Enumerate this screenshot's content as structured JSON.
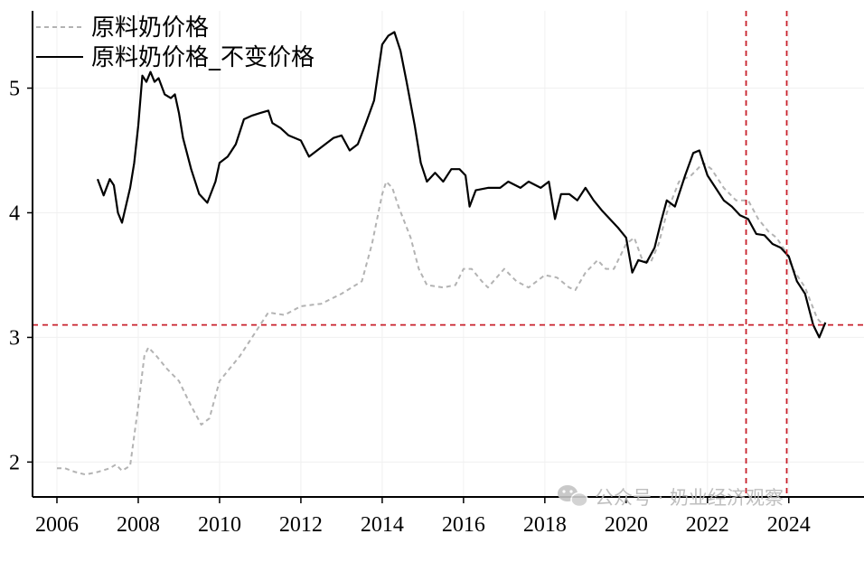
{
  "chart_data": {
    "type": "line",
    "title": "",
    "xlabel": "",
    "ylabel": "",
    "xlim": [
      2005.4,
      2025.85
    ],
    "ylim": [
      1.72,
      5.62
    ],
    "x_ticks": [
      2006,
      2008,
      2010,
      2012,
      2014,
      2016,
      2018,
      2020,
      2022,
      2024
    ],
    "x_tick_labels": [
      "2006",
      "2008",
      "2010",
      "2012",
      "2014",
      "2016",
      "2018",
      "2020",
      "2022",
      "2024"
    ],
    "y_ticks": [
      2,
      3,
      4,
      5
    ],
    "y_tick_labels": [
      "2",
      "3",
      "4",
      "5"
    ],
    "grid": true,
    "legend_position": "top-left",
    "reference_lines": {
      "horizontal": [
        3.1
      ],
      "vertical": [
        2022.95,
        2023.95
      ],
      "color": "#c8202b"
    },
    "series": [
      {
        "name": "原料奶价格",
        "color": "#b3b3b3",
        "style": "dashed",
        "points": [
          [
            2006.0,
            1.95
          ],
          [
            2006.2,
            1.95
          ],
          [
            2006.45,
            1.92
          ],
          [
            2006.7,
            1.9
          ],
          [
            2007.0,
            1.92
          ],
          [
            2007.3,
            1.95
          ],
          [
            2007.45,
            1.98
          ],
          [
            2007.6,
            1.93
          ],
          [
            2007.8,
            1.97
          ],
          [
            2008.0,
            2.45
          ],
          [
            2008.15,
            2.85
          ],
          [
            2008.25,
            2.92
          ],
          [
            2008.45,
            2.85
          ],
          [
            2008.7,
            2.75
          ],
          [
            2009.0,
            2.65
          ],
          [
            2009.3,
            2.45
          ],
          [
            2009.55,
            2.3
          ],
          [
            2009.75,
            2.35
          ],
          [
            2010.0,
            2.65
          ],
          [
            2010.5,
            2.85
          ],
          [
            2011.0,
            3.1
          ],
          [
            2011.2,
            3.2
          ],
          [
            2011.6,
            3.18
          ],
          [
            2012.0,
            3.25
          ],
          [
            2012.5,
            3.27
          ],
          [
            2013.0,
            3.35
          ],
          [
            2013.5,
            3.45
          ],
          [
            2013.75,
            3.75
          ],
          [
            2014.0,
            4.15
          ],
          [
            2014.1,
            4.25
          ],
          [
            2014.25,
            4.2
          ],
          [
            2014.4,
            4.05
          ],
          [
            2014.7,
            3.8
          ],
          [
            2014.9,
            3.55
          ],
          [
            2015.1,
            3.42
          ],
          [
            2015.5,
            3.4
          ],
          [
            2015.8,
            3.42
          ],
          [
            2016.0,
            3.55
          ],
          [
            2016.2,
            3.55
          ],
          [
            2016.45,
            3.45
          ],
          [
            2016.6,
            3.4
          ],
          [
            2017.0,
            3.55
          ],
          [
            2017.3,
            3.45
          ],
          [
            2017.6,
            3.4
          ],
          [
            2018.0,
            3.5
          ],
          [
            2018.3,
            3.48
          ],
          [
            2018.6,
            3.4
          ],
          [
            2018.75,
            3.38
          ],
          [
            2019.0,
            3.52
          ],
          [
            2019.3,
            3.62
          ],
          [
            2019.5,
            3.55
          ],
          [
            2019.7,
            3.55
          ],
          [
            2020.0,
            3.75
          ],
          [
            2020.2,
            3.8
          ],
          [
            2020.4,
            3.62
          ],
          [
            2020.6,
            3.6
          ],
          [
            2020.8,
            3.75
          ],
          [
            2021.0,
            4.0
          ],
          [
            2021.3,
            4.25
          ],
          [
            2021.6,
            4.3
          ],
          [
            2021.9,
            4.4
          ],
          [
            2022.1,
            4.35
          ],
          [
            2022.4,
            4.2
          ],
          [
            2022.7,
            4.1
          ],
          [
            2023.0,
            4.1
          ],
          [
            2023.25,
            3.95
          ],
          [
            2023.5,
            3.85
          ],
          [
            2023.7,
            3.8
          ],
          [
            2023.9,
            3.7
          ],
          [
            2024.1,
            3.55
          ],
          [
            2024.4,
            3.4
          ],
          [
            2024.7,
            3.15
          ],
          [
            2024.85,
            3.1
          ]
        ]
      },
      {
        "name": "原料奶价格_不变价格",
        "color": "#000000",
        "style": "solid",
        "points": [
          [
            2007.0,
            4.27
          ],
          [
            2007.15,
            4.14
          ],
          [
            2007.3,
            4.27
          ],
          [
            2007.4,
            4.22
          ],
          [
            2007.5,
            4.0
          ],
          [
            2007.6,
            3.92
          ],
          [
            2007.8,
            4.2
          ],
          [
            2007.9,
            4.4
          ],
          [
            2008.0,
            4.7
          ],
          [
            2008.1,
            5.1
          ],
          [
            2008.2,
            5.05
          ],
          [
            2008.3,
            5.13
          ],
          [
            2008.4,
            5.05
          ],
          [
            2008.5,
            5.08
          ],
          [
            2008.65,
            4.95
          ],
          [
            2008.8,
            4.92
          ],
          [
            2008.9,
            4.95
          ],
          [
            2009.0,
            4.8
          ],
          [
            2009.1,
            4.6
          ],
          [
            2009.3,
            4.35
          ],
          [
            2009.5,
            4.15
          ],
          [
            2009.7,
            4.08
          ],
          [
            2009.9,
            4.25
          ],
          [
            2010.0,
            4.4
          ],
          [
            2010.2,
            4.45
          ],
          [
            2010.4,
            4.55
          ],
          [
            2010.6,
            4.75
          ],
          [
            2010.8,
            4.78
          ],
          [
            2011.0,
            4.8
          ],
          [
            2011.2,
            4.82
          ],
          [
            2011.3,
            4.72
          ],
          [
            2011.5,
            4.68
          ],
          [
            2011.7,
            4.62
          ],
          [
            2012.0,
            4.58
          ],
          [
            2012.2,
            4.45
          ],
          [
            2012.4,
            4.5
          ],
          [
            2012.6,
            4.55
          ],
          [
            2012.8,
            4.6
          ],
          [
            2013.0,
            4.62
          ],
          [
            2013.2,
            4.5
          ],
          [
            2013.4,
            4.55
          ],
          [
            2013.6,
            4.72
          ],
          [
            2013.8,
            4.9
          ],
          [
            2014.0,
            5.35
          ],
          [
            2014.15,
            5.42
          ],
          [
            2014.3,
            5.45
          ],
          [
            2014.45,
            5.3
          ],
          [
            2014.6,
            5.05
          ],
          [
            2014.8,
            4.7
          ],
          [
            2014.95,
            4.4
          ],
          [
            2015.1,
            4.25
          ],
          [
            2015.3,
            4.32
          ],
          [
            2015.5,
            4.25
          ],
          [
            2015.7,
            4.35
          ],
          [
            2015.9,
            4.35
          ],
          [
            2016.05,
            4.3
          ],
          [
            2016.15,
            4.05
          ],
          [
            2016.3,
            4.18
          ],
          [
            2016.6,
            4.2
          ],
          [
            2016.9,
            4.2
          ],
          [
            2017.1,
            4.25
          ],
          [
            2017.4,
            4.2
          ],
          [
            2017.6,
            4.25
          ],
          [
            2017.9,
            4.2
          ],
          [
            2018.1,
            4.25
          ],
          [
            2018.25,
            3.95
          ],
          [
            2018.4,
            4.15
          ],
          [
            2018.6,
            4.15
          ],
          [
            2018.8,
            4.1
          ],
          [
            2019.0,
            4.2
          ],
          [
            2019.2,
            4.1
          ],
          [
            2019.4,
            4.02
          ],
          [
            2019.6,
            3.95
          ],
          [
            2019.8,
            3.88
          ],
          [
            2020.0,
            3.8
          ],
          [
            2020.15,
            3.52
          ],
          [
            2020.3,
            3.62
          ],
          [
            2020.5,
            3.6
          ],
          [
            2020.7,
            3.72
          ],
          [
            2020.85,
            3.92
          ],
          [
            2021.0,
            4.1
          ],
          [
            2021.2,
            4.05
          ],
          [
            2021.45,
            4.3
          ],
          [
            2021.65,
            4.48
          ],
          [
            2021.8,
            4.5
          ],
          [
            2022.0,
            4.3
          ],
          [
            2022.2,
            4.2
          ],
          [
            2022.4,
            4.1
          ],
          [
            2022.6,
            4.05
          ],
          [
            2022.8,
            3.98
          ],
          [
            2023.0,
            3.95
          ],
          [
            2023.2,
            3.83
          ],
          [
            2023.4,
            3.82
          ],
          [
            2023.6,
            3.75
          ],
          [
            2023.8,
            3.72
          ],
          [
            2024.0,
            3.65
          ],
          [
            2024.2,
            3.45
          ],
          [
            2024.4,
            3.35
          ],
          [
            2024.6,
            3.1
          ],
          [
            2024.75,
            3.0
          ],
          [
            2024.9,
            3.12
          ]
        ]
      }
    ]
  },
  "watermark": {
    "text": "公众号 · 奶业经济观察",
    "icon": "wechat-icon"
  }
}
